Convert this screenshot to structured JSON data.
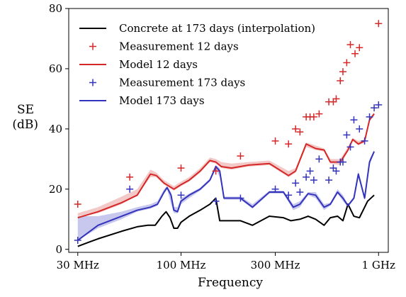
{
  "chart_data": {
    "type": "line",
    "xlabel": "Frequency",
    "ylabel": "SE",
    "ylabel_unit": "(dB)",
    "xscale": "log",
    "xlim_hz": [
      27000000,
      1120000000
    ],
    "ylim": [
      -1,
      80
    ],
    "x_ticks": [
      {
        "value": 30000000,
        "label": "30 MHz"
      },
      {
        "value": 100000000,
        "label": "100 MHz"
      },
      {
        "value": 300000000,
        "label": "300 MHz"
      },
      {
        "value": 1000000000,
        "label": "1 GHz"
      }
    ],
    "y_ticks": [
      0,
      20,
      40,
      60,
      80
    ],
    "legend_position": "top-left",
    "series": [
      {
        "name": "Concrete at 173 days (interpolation)",
        "kind": "line",
        "color": "#000000",
        "points": [
          [
            30,
            1
          ],
          [
            38,
            3.5
          ],
          [
            50,
            6
          ],
          [
            60,
            7.5
          ],
          [
            68,
            8
          ],
          [
            74,
            8
          ],
          [
            80,
            11
          ],
          [
            84,
            12.5
          ],
          [
            88,
            10.5
          ],
          [
            92,
            7
          ],
          [
            96,
            7
          ],
          [
            100,
            9
          ],
          [
            110,
            11
          ],
          [
            125,
            13
          ],
          [
            140,
            15
          ],
          [
            150,
            17
          ],
          [
            157,
            9.5
          ],
          [
            175,
            9.5
          ],
          [
            200,
            9.5
          ],
          [
            230,
            8
          ],
          [
            280,
            11
          ],
          [
            330,
            10.5
          ],
          [
            360,
            9.5
          ],
          [
            400,
            10
          ],
          [
            440,
            11
          ],
          [
            480,
            10
          ],
          [
            530,
            8
          ],
          [
            570,
            10.5
          ],
          [
            620,
            11
          ],
          [
            660,
            9.5
          ],
          [
            700,
            15
          ],
          [
            750,
            11
          ],
          [
            800,
            10.5
          ],
          [
            880,
            16
          ],
          [
            950,
            18
          ]
        ],
        "band": []
      },
      {
        "name": "Measurement 12 days",
        "kind": "markers",
        "color": "#d62728",
        "points": [
          [
            30,
            15
          ],
          [
            55,
            24
          ],
          [
            100,
            27
          ],
          [
            150,
            26
          ],
          [
            200,
            31
          ],
          [
            300,
            36
          ],
          [
            350,
            35
          ],
          [
            380,
            40
          ],
          [
            400,
            39
          ],
          [
            430,
            44
          ],
          [
            450,
            44
          ],
          [
            470,
            44
          ],
          [
            500,
            45
          ],
          [
            560,
            49
          ],
          [
            590,
            49
          ],
          [
            610,
            50
          ],
          [
            640,
            56
          ],
          [
            660,
            59
          ],
          [
            690,
            62
          ],
          [
            720,
            68
          ],
          [
            760,
            65
          ],
          [
            800,
            67
          ],
          [
            1000,
            75
          ]
        ]
      },
      {
        "name": "Model 12 days",
        "kind": "line",
        "color": "#d62728",
        "points": [
          [
            30,
            10.5
          ],
          [
            38,
            12.5
          ],
          [
            50,
            15.5
          ],
          [
            60,
            18
          ],
          [
            70,
            25
          ],
          [
            75,
            24.5
          ],
          [
            82,
            22
          ],
          [
            92,
            20
          ],
          [
            100,
            21.5
          ],
          [
            110,
            23
          ],
          [
            125,
            26
          ],
          [
            140,
            29.5
          ],
          [
            150,
            29
          ],
          [
            160,
            27.5
          ],
          [
            180,
            27
          ],
          [
            220,
            28
          ],
          [
            280,
            28.5
          ],
          [
            350,
            24.5
          ],
          [
            380,
            26
          ],
          [
            430,
            35
          ],
          [
            480,
            33.5
          ],
          [
            530,
            33
          ],
          [
            570,
            29
          ],
          [
            640,
            29
          ],
          [
            700,
            33
          ],
          [
            740,
            36.5
          ],
          [
            790,
            35
          ],
          [
            850,
            36
          ],
          [
            900,
            43
          ],
          [
            950,
            45
          ]
        ],
        "band": [
          [
            30,
            11,
            12
          ],
          [
            38,
            12,
            14
          ],
          [
            50,
            15,
            17.5
          ],
          [
            60,
            18,
            20
          ],
          [
            70,
            24,
            26.5
          ],
          [
            75,
            24,
            25.5
          ],
          [
            82,
            21.5,
            23
          ],
          [
            92,
            19.5,
            21
          ],
          [
            100,
            21,
            22.5
          ],
          [
            110,
            22.5,
            24
          ],
          [
            125,
            25.5,
            27
          ],
          [
            140,
            29,
            30.5
          ],
          [
            150,
            28.5,
            30
          ],
          [
            160,
            27,
            29
          ],
          [
            180,
            26.5,
            28.5
          ],
          [
            220,
            27.5,
            29
          ],
          [
            280,
            28,
            29.5
          ],
          [
            350,
            24,
            26
          ],
          [
            380,
            25.5,
            27
          ],
          [
            430,
            34,
            35.5
          ],
          [
            480,
            33,
            34.5
          ],
          [
            530,
            32.5,
            33.5
          ],
          [
            570,
            28.5,
            30
          ],
          [
            640,
            28,
            30
          ],
          [
            700,
            32.5,
            34
          ],
          [
            740,
            36,
            37
          ],
          [
            790,
            34.5,
            36
          ],
          [
            850,
            35.5,
            36.5
          ],
          [
            900,
            42.5,
            43.5
          ],
          [
            950,
            44.5,
            45.5
          ]
        ]
      },
      {
        "name": "Measurement 173 days",
        "kind": "markers",
        "color": "#3333bb",
        "points": [
          [
            30,
            3
          ],
          [
            55,
            20
          ],
          [
            100,
            18
          ],
          [
            150,
            16
          ],
          [
            200,
            17
          ],
          [
            300,
            20
          ],
          [
            350,
            18
          ],
          [
            380,
            22
          ],
          [
            400,
            19
          ],
          [
            430,
            24
          ],
          [
            450,
            26
          ],
          [
            470,
            23
          ],
          [
            500,
            30
          ],
          [
            560,
            23
          ],
          [
            590,
            27
          ],
          [
            610,
            26
          ],
          [
            640,
            29
          ],
          [
            660,
            29
          ],
          [
            690,
            38
          ],
          [
            720,
            34
          ],
          [
            750,
            43
          ],
          [
            800,
            40
          ],
          [
            850,
            36
          ],
          [
            900,
            44
          ],
          [
            950,
            47
          ],
          [
            1000,
            48
          ]
        ]
      },
      {
        "name": "Model 173 days",
        "kind": "line",
        "color": "#3333bb",
        "points": [
          [
            30,
            3
          ],
          [
            38,
            8
          ],
          [
            50,
            11
          ],
          [
            60,
            13
          ],
          [
            70,
            14
          ],
          [
            76,
            15
          ],
          [
            82,
            19
          ],
          [
            85,
            20.5
          ],
          [
            89,
            18
          ],
          [
            92,
            13
          ],
          [
            96,
            12.5
          ],
          [
            100,
            16
          ],
          [
            110,
            18
          ],
          [
            125,
            20
          ],
          [
            140,
            23
          ],
          [
            150,
            27.5
          ],
          [
            157,
            26
          ],
          [
            165,
            17
          ],
          [
            200,
            17
          ],
          [
            230,
            14
          ],
          [
            280,
            19
          ],
          [
            330,
            19
          ],
          [
            370,
            14
          ],
          [
            400,
            15
          ],
          [
            440,
            18.5
          ],
          [
            480,
            18
          ],
          [
            530,
            14
          ],
          [
            570,
            15
          ],
          [
            620,
            19
          ],
          [
            660,
            17
          ],
          [
            700,
            14.5
          ],
          [
            750,
            17
          ],
          [
            790,
            25
          ],
          [
            850,
            17
          ],
          [
            900,
            29
          ],
          [
            950,
            32.5
          ]
        ],
        "band": [
          [
            30,
            3,
            11
          ],
          [
            38,
            7,
            11
          ],
          [
            50,
            10,
            12.5
          ],
          [
            60,
            12.5,
            14
          ],
          [
            70,
            13.5,
            15
          ],
          [
            76,
            14.5,
            16
          ],
          [
            82,
            18.5,
            20
          ],
          [
            85,
            20,
            21
          ],
          [
            89,
            15,
            19
          ],
          [
            92,
            12,
            14
          ],
          [
            96,
            12,
            14
          ],
          [
            100,
            15,
            17
          ],
          [
            110,
            17,
            18.5
          ],
          [
            125,
            19.5,
            20.5
          ],
          [
            140,
            22.5,
            23.5
          ],
          [
            150,
            26.5,
            28
          ],
          [
            157,
            24,
            27
          ],
          [
            165,
            16.5,
            17.5
          ],
          [
            200,
            16.5,
            17.5
          ],
          [
            230,
            13.5,
            15
          ],
          [
            280,
            18.5,
            19.5
          ],
          [
            330,
            18.5,
            19.5
          ],
          [
            370,
            13,
            15
          ],
          [
            400,
            14,
            16
          ],
          [
            440,
            18,
            19
          ],
          [
            480,
            17,
            19
          ],
          [
            530,
            13,
            15
          ],
          [
            570,
            14.5,
            15.5
          ],
          [
            620,
            18.5,
            20
          ],
          [
            660,
            16,
            18
          ],
          [
            700,
            14,
            15
          ],
          [
            750,
            16.5,
            17.5
          ],
          [
            790,
            24,
            26
          ],
          [
            850,
            16.5,
            17.5
          ],
          [
            900,
            28,
            30
          ],
          [
            950,
            32,
            33
          ]
        ]
      }
    ]
  }
}
